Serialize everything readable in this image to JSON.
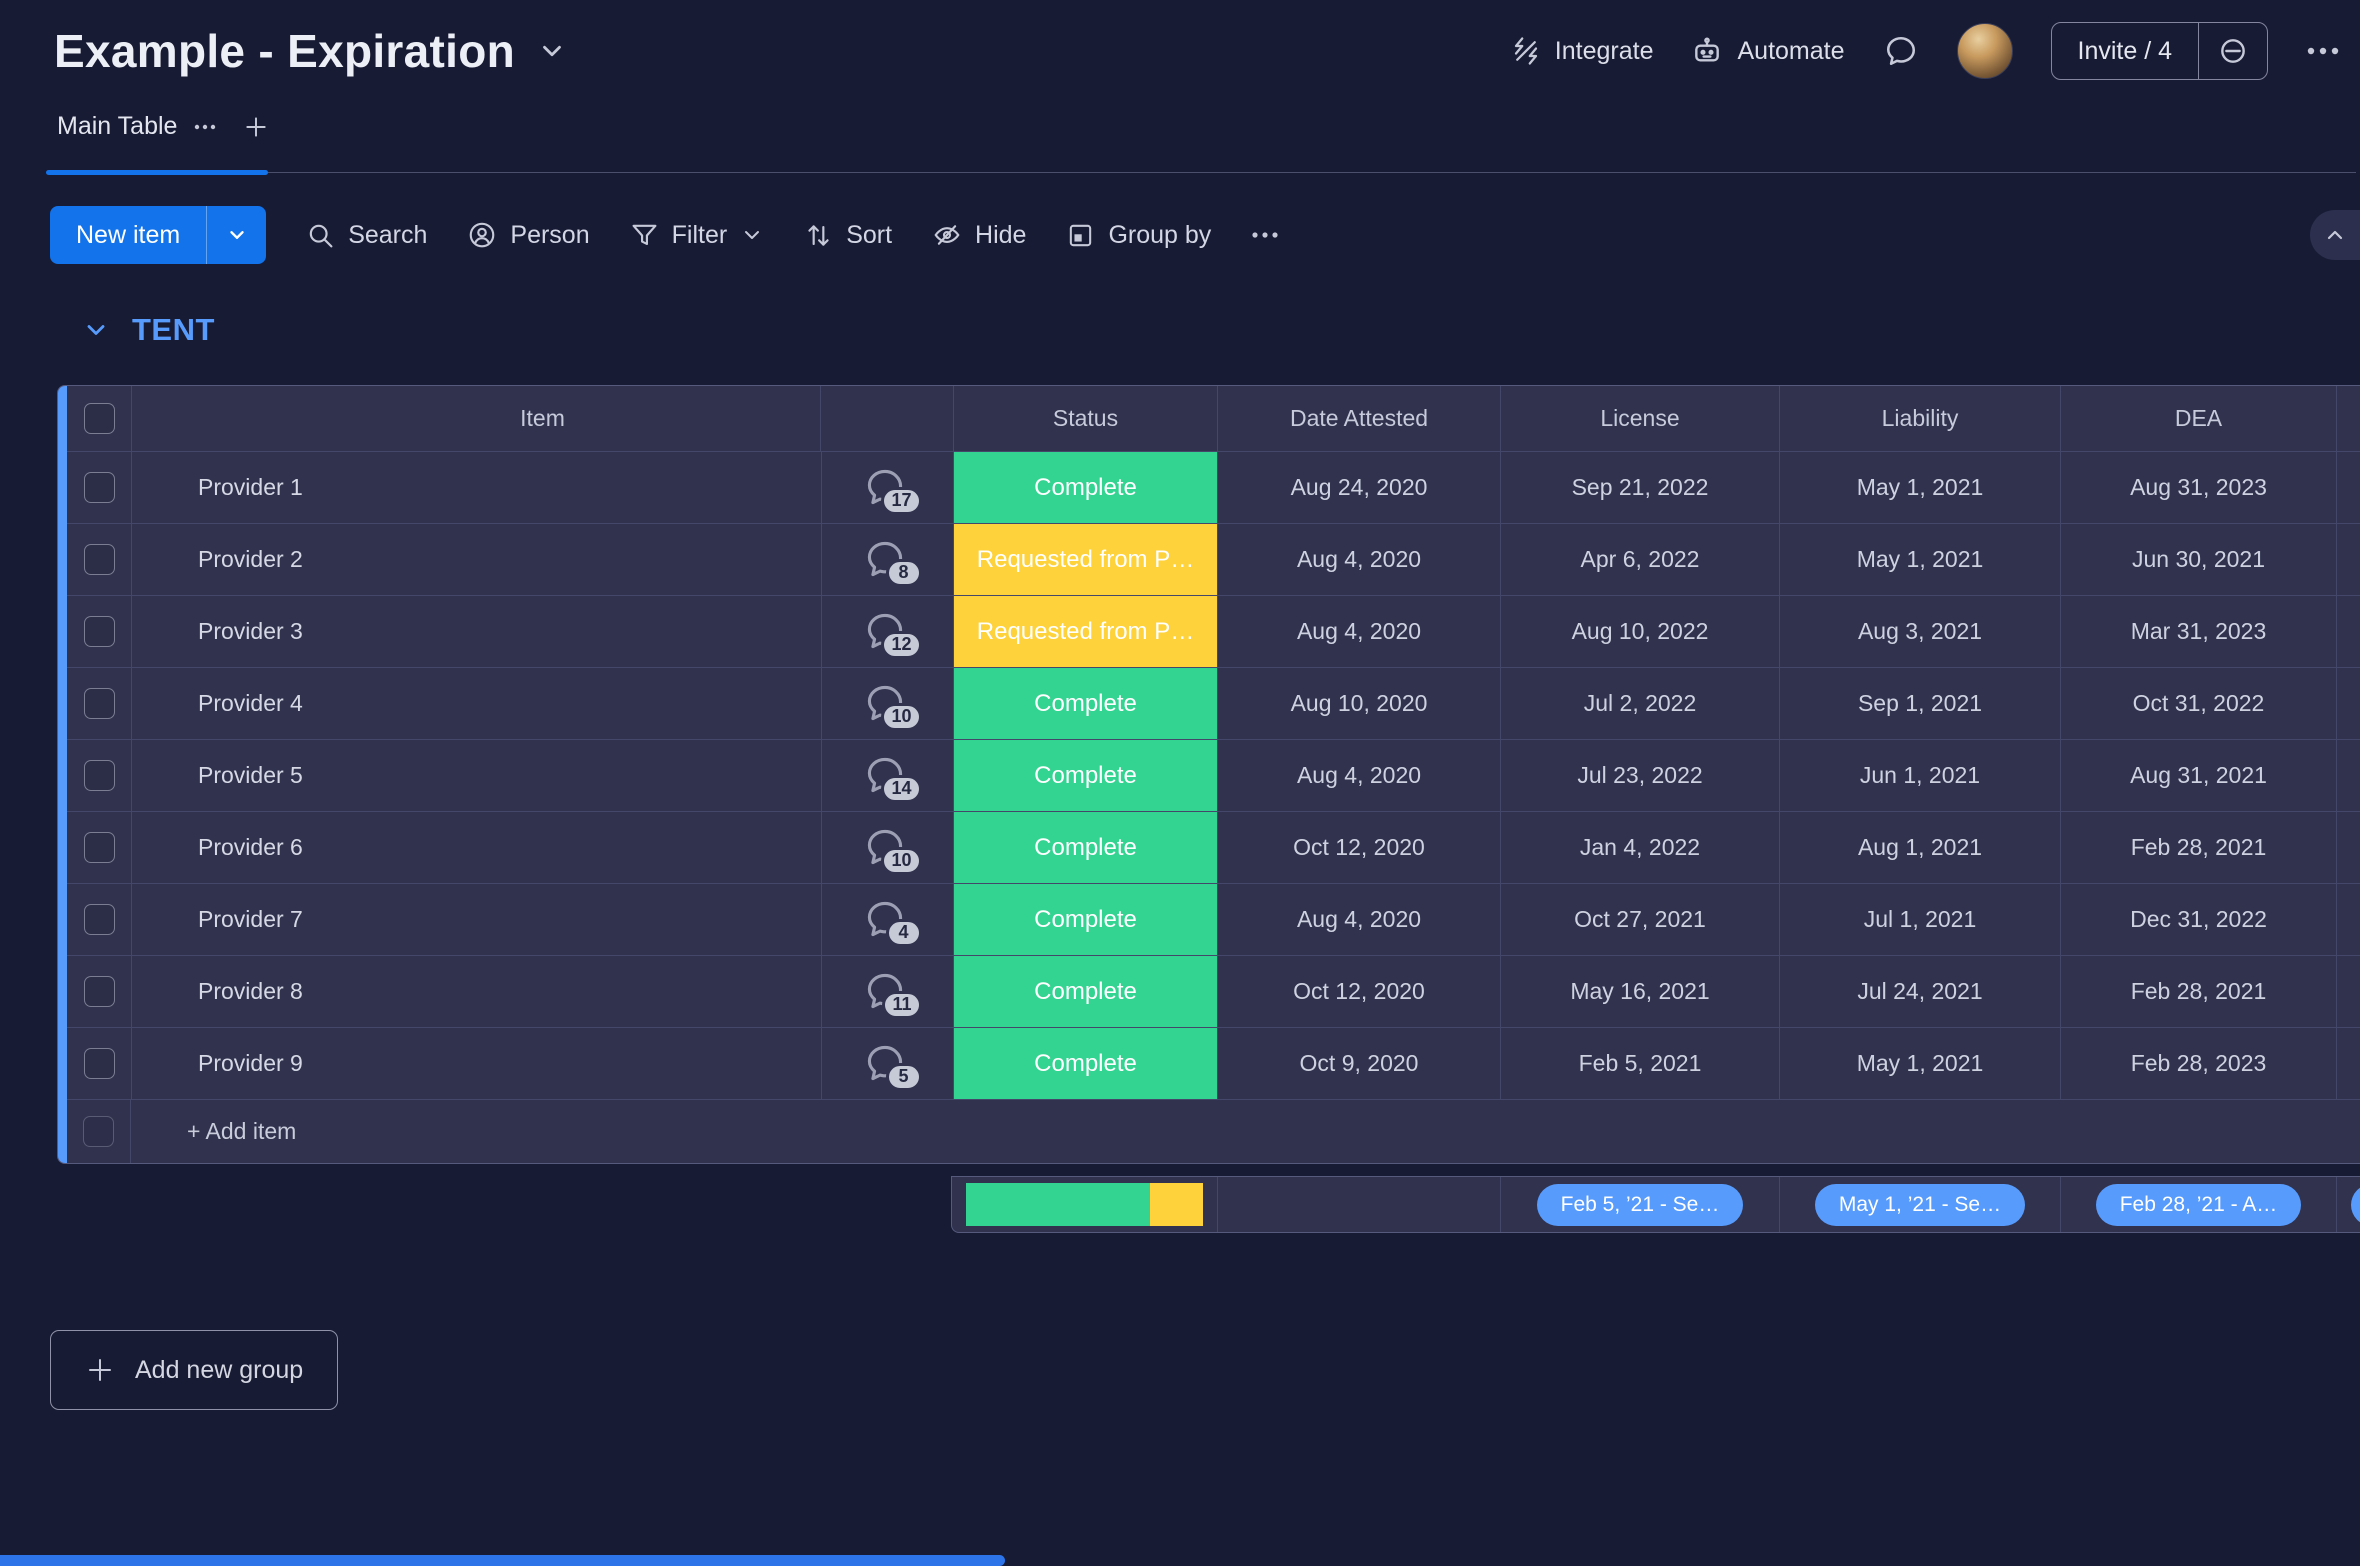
{
  "colors": {
    "page_bg": "#181b34",
    "surface": "#30324e",
    "accent_blue": "#1273ea",
    "group_blue": "#579bfc",
    "status_green": "#33d391",
    "status_yellow": "#fdd23a",
    "pill_blue": "#579bfc"
  },
  "header": {
    "board_title": "Example - Expiration",
    "integrate_label": "Integrate",
    "automate_label": "Automate",
    "invite_label": "Invite / 4"
  },
  "tabs": {
    "main_tab_label": "Main Table"
  },
  "toolbar": {
    "new_item_label": "New item",
    "search_label": "Search",
    "person_label": "Person",
    "filter_label": "Filter",
    "sort_label": "Sort",
    "hide_label": "Hide",
    "group_by_label": "Group by"
  },
  "group": {
    "name": "TENT"
  },
  "table": {
    "columns": {
      "item": "Item",
      "status": "Status",
      "date_attested": "Date Attested",
      "license": "License",
      "liability": "Liability",
      "dea": "DEA"
    },
    "rows": [
      {
        "name": "Provider 1",
        "chat_count": "17",
        "status": "Complete",
        "status_color": "#33d391",
        "date_attested": "Aug 24, 2020",
        "license": "Sep 21, 2022",
        "liability": "May 1, 2021",
        "dea": "Aug 31, 2023"
      },
      {
        "name": "Provider 2",
        "chat_count": "8",
        "status": "Requested from P…",
        "status_color": "#fdd23a",
        "date_attested": "Aug 4, 2020",
        "license": "Apr 6, 2022",
        "liability": "May 1, 2021",
        "dea": "Jun 30, 2021"
      },
      {
        "name": "Provider 3",
        "chat_count": "12",
        "status": "Requested from P…",
        "status_color": "#fdd23a",
        "date_attested": "Aug 4, 2020",
        "license": "Aug 10, 2022",
        "liability": "Aug 3, 2021",
        "dea": "Mar 31, 2023"
      },
      {
        "name": "Provider 4",
        "chat_count": "10",
        "status": "Complete",
        "status_color": "#33d391",
        "date_attested": "Aug 10, 2020",
        "license": "Jul 2, 2022",
        "liability": "Sep 1, 2021",
        "dea": "Oct 31, 2022"
      },
      {
        "name": "Provider 5",
        "chat_count": "14",
        "status": "Complete",
        "status_color": "#33d391",
        "date_attested": "Aug 4, 2020",
        "license": "Jul 23, 2022",
        "liability": "Jun 1, 2021",
        "dea": "Aug 31, 2021"
      },
      {
        "name": "Provider 6",
        "chat_count": "10",
        "status": "Complete",
        "status_color": "#33d391",
        "date_attested": "Oct 12, 2020",
        "license": "Jan 4, 2022",
        "liability": "Aug 1, 2021",
        "dea": "Feb 28, 2021"
      },
      {
        "name": "Provider 7",
        "chat_count": "4",
        "status": "Complete",
        "status_color": "#33d391",
        "date_attested": "Aug 4, 2020",
        "license": "Oct 27, 2021",
        "liability": "Jul 1, 2021",
        "dea": "Dec 31, 2022"
      },
      {
        "name": "Provider 8",
        "chat_count": "11",
        "status": "Complete",
        "status_color": "#33d391",
        "date_attested": "Oct 12, 2020",
        "license": "May 16, 2021",
        "liability": "Jul 24, 2021",
        "dea": "Feb 28, 2021"
      },
      {
        "name": "Provider 9",
        "chat_count": "5",
        "status": "Complete",
        "status_color": "#33d391",
        "date_attested": "Oct 9, 2020",
        "license": "Feb 5, 2021",
        "liability": "May 1, 2021",
        "dea": "Feb 28, 2023"
      }
    ],
    "add_item_label": "+ Add item",
    "summary": {
      "status_distribution": [
        {
          "label": "Complete",
          "color": "#33d391",
          "percent": 77.8
        },
        {
          "label": "Requested from P…",
          "color": "#fdd23a",
          "percent": 22.2
        }
      ],
      "license_range": "Feb 5, ’21 - Se…",
      "liability_range": "May 1, ’21 - Se…",
      "dea_range": "Feb 28, ’21 - A…"
    }
  },
  "footer": {
    "add_group_label": "Add new group"
  }
}
